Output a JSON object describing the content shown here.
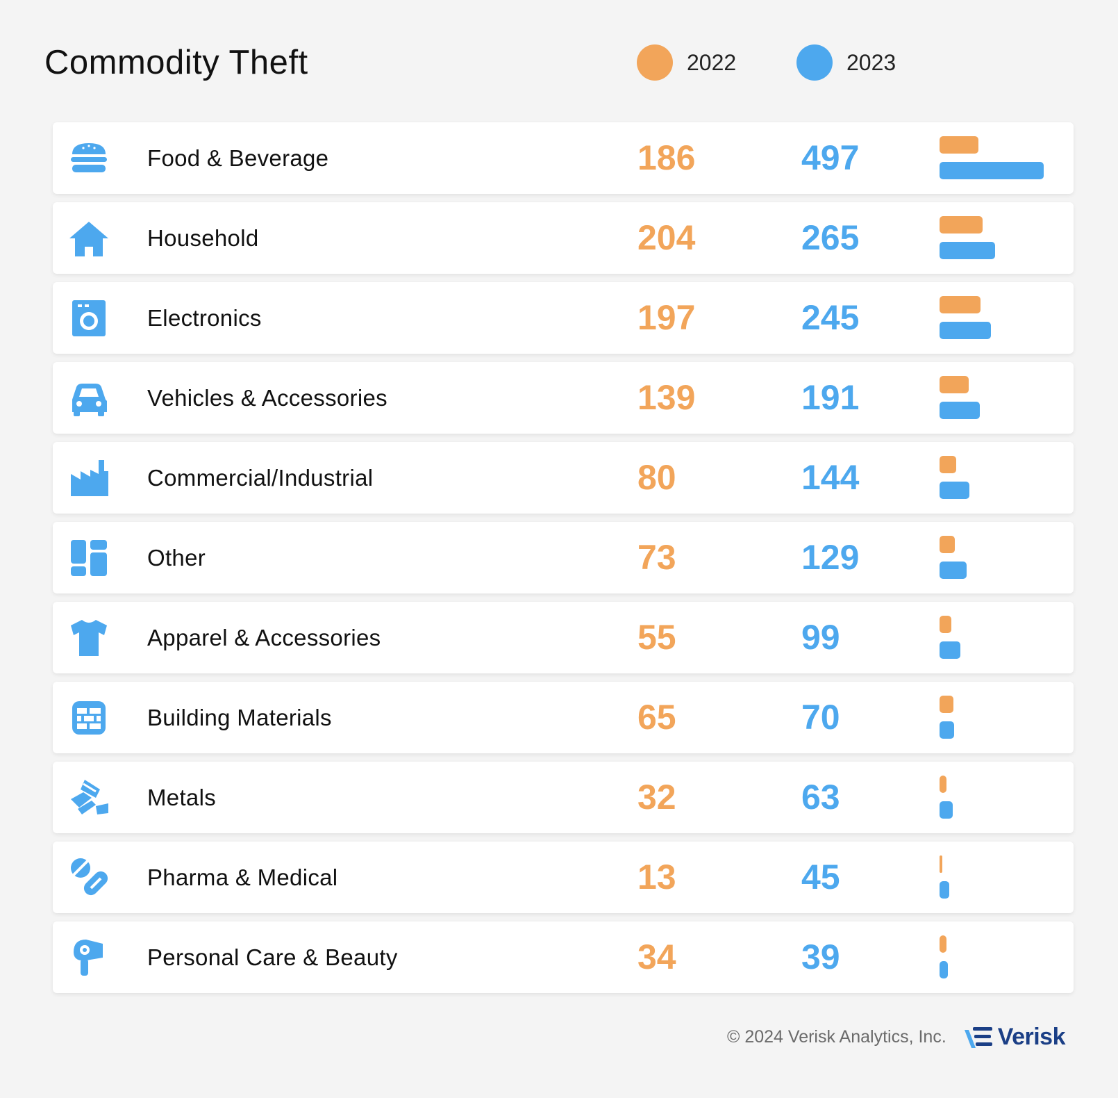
{
  "colors": {
    "y2022": "#f2a55a",
    "y2023": "#4da8ee",
    "icon": "#4da8ee",
    "brand": "#1b3f86"
  },
  "chart_data": {
    "type": "bar",
    "title": "Commodity Theft",
    "orientation": "horizontal-table",
    "legend": "top-right",
    "categories": [
      "Food & Beverage",
      "Household",
      "Electronics",
      "Vehicles & Accessories",
      "Commercial/Industrial",
      "Other",
      "Apparel & Accessories",
      "Building Materials",
      "Metals",
      "Pharma & Medical",
      "Personal Care & Beauty"
    ],
    "icons": [
      "burger-icon",
      "house-icon",
      "washing-machine-icon",
      "car-icon",
      "factory-icon",
      "dashboard-icon",
      "shirt-icon",
      "brick-wall-icon",
      "gold-bars-icon",
      "pills-icon",
      "hair-dryer-icon"
    ],
    "series": [
      {
        "name": "2022",
        "values": [
          186,
          204,
          197,
          139,
          80,
          73,
          55,
          65,
          32,
          13,
          34
        ]
      },
      {
        "name": "2023",
        "values": [
          497,
          265,
          245,
          191,
          144,
          129,
          99,
          70,
          63,
          45,
          39
        ]
      }
    ],
    "xlim": [
      0,
      497
    ]
  },
  "footer": {
    "copyright": "© 2024 Verisk Analytics, Inc.",
    "brand": "Verisk",
    "logo_icon": "verisk-logo-icon"
  }
}
